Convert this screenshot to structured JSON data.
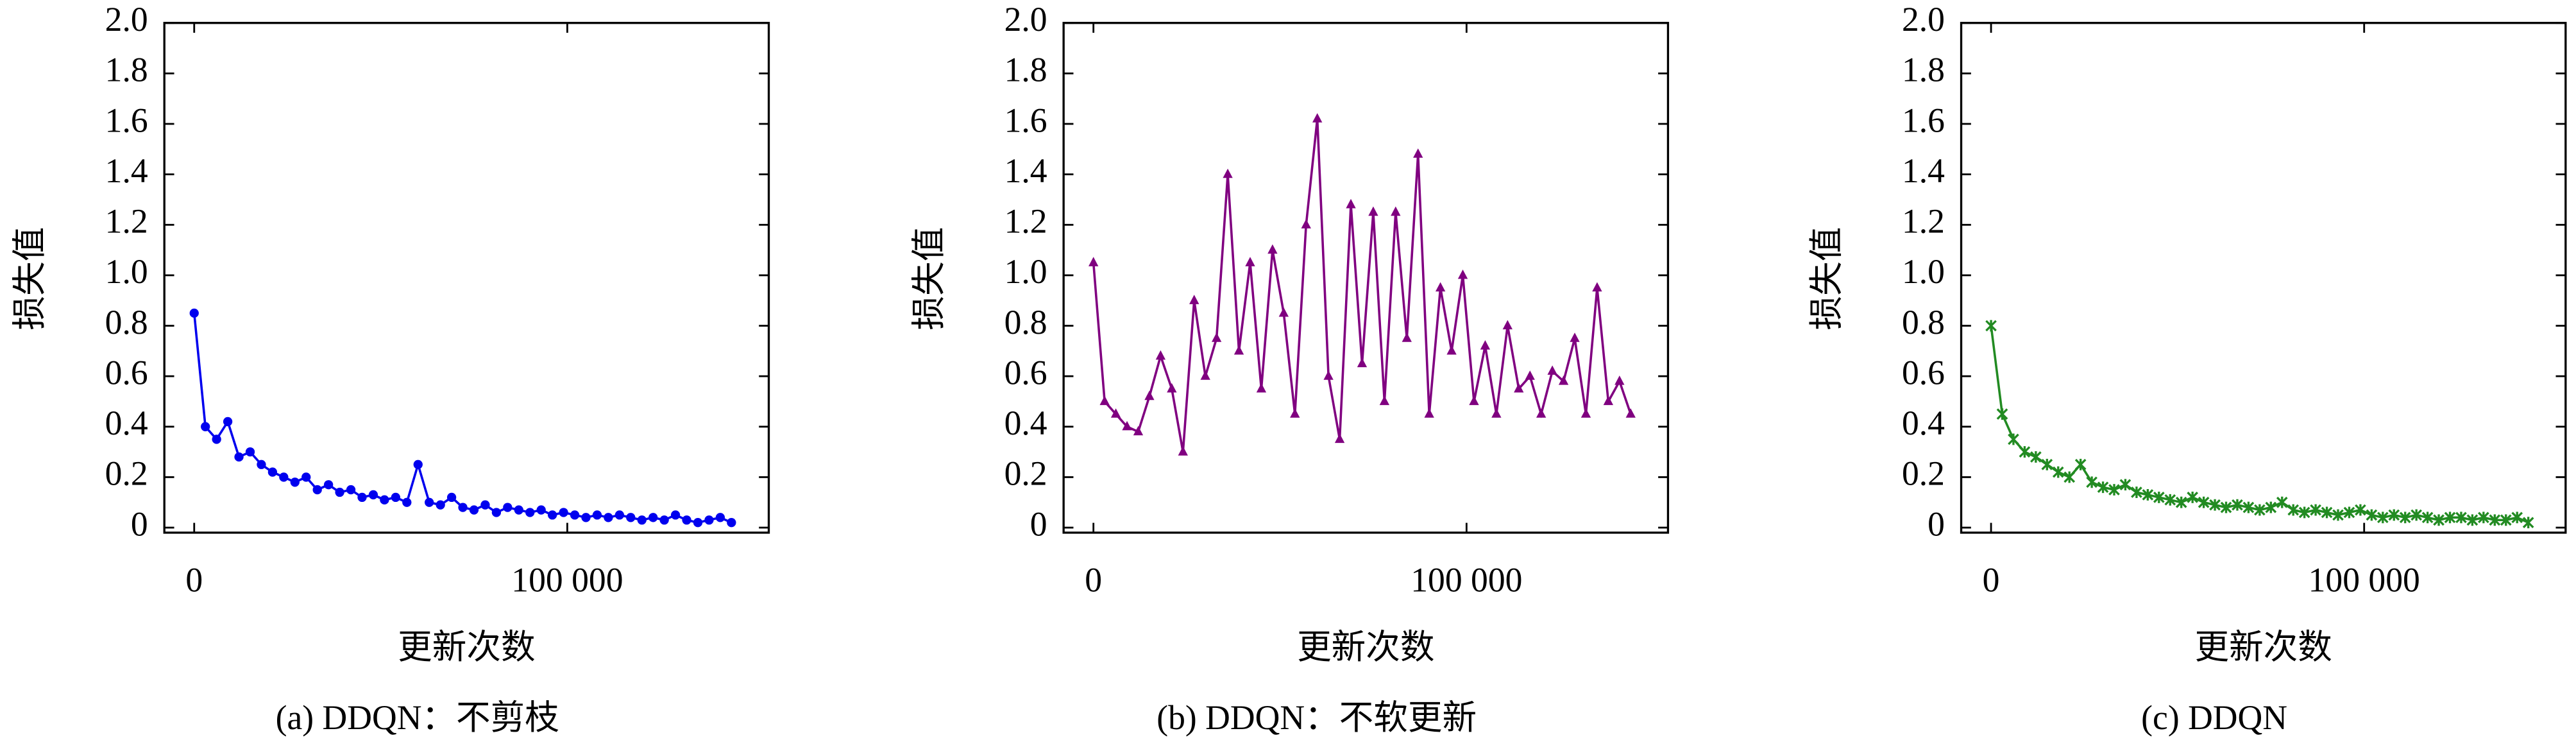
{
  "chart_data": [
    {
      "type": "line",
      "caption": "(a) DDQN：不剪枝",
      "xlabel": "更新次数",
      "ylabel": "损失值",
      "x": [
        0,
        3000,
        6000,
        9000,
        12000,
        15000,
        18000,
        21000,
        24000,
        27000,
        30000,
        33000,
        36000,
        39000,
        42000,
        45000,
        48000,
        51000,
        54000,
        57000,
        60000,
        63000,
        66000,
        69000,
        72000,
        75000,
        78000,
        81000,
        84000,
        87000,
        90000,
        93000,
        96000,
        99000,
        102000,
        105000,
        108000,
        111000,
        114000,
        117000,
        120000,
        123000,
        126000,
        129000,
        132000,
        135000,
        138000,
        141000,
        144000
      ],
      "series": [
        {
          "color": "#0000ee",
          "marker": "circle",
          "values": [
            0.85,
            0.4,
            0.35,
            0.42,
            0.28,
            0.3,
            0.25,
            0.22,
            0.2,
            0.18,
            0.2,
            0.15,
            0.17,
            0.14,
            0.15,
            0.12,
            0.13,
            0.11,
            0.12,
            0.1,
            0.25,
            0.1,
            0.09,
            0.12,
            0.08,
            0.07,
            0.09,
            0.06,
            0.08,
            0.07,
            0.06,
            0.07,
            0.05,
            0.06,
            0.05,
            0.04,
            0.05,
            0.04,
            0.05,
            0.04,
            0.03,
            0.04,
            0.03,
            0.05,
            0.03,
            0.02,
            0.03,
            0.04,
            0.02
          ]
        }
      ],
      "xlim": [
        -8000,
        154000
      ],
      "xticks": [
        0,
        {
          "value": 100000,
          "label": "100 000"
        }
      ],
      "ylim": [
        -0.02,
        2.0
      ],
      "yticks": [
        0,
        0.2,
        0.4,
        0.6,
        0.8,
        {
          "value": 1,
          "label": "1.0"
        },
        1.2,
        1.4,
        1.6,
        1.8,
        {
          "value": 2,
          "label": "2.0"
        }
      ]
    },
    {
      "type": "line",
      "caption": "(b) DDQN：不软更新",
      "xlabel": "更新次数",
      "ylabel": "损失值",
      "x": [
        0,
        3000,
        6000,
        9000,
        12000,
        15000,
        18000,
        21000,
        24000,
        27000,
        30000,
        33000,
        36000,
        39000,
        42000,
        45000,
        48000,
        51000,
        54000,
        57000,
        60000,
        63000,
        66000,
        69000,
        72000,
        75000,
        78000,
        81000,
        84000,
        87000,
        90000,
        93000,
        96000,
        99000,
        102000,
        105000,
        108000,
        111000,
        114000,
        117000,
        120000,
        123000,
        126000,
        129000,
        132000,
        135000,
        138000,
        141000,
        144000
      ],
      "series": [
        {
          "color": "#800080",
          "marker": "triangle",
          "values": [
            1.05,
            0.5,
            0.45,
            0.4,
            0.38,
            0.52,
            0.68,
            0.55,
            0.3,
            0.9,
            0.6,
            0.75,
            1.4,
            0.7,
            1.05,
            0.55,
            1.1,
            0.85,
            0.45,
            1.2,
            1.62,
            0.6,
            0.35,
            1.28,
            0.65,
            1.25,
            0.5,
            1.25,
            0.75,
            1.48,
            0.45,
            0.95,
            0.7,
            1.0,
            0.5,
            0.72,
            0.45,
            0.8,
            0.55,
            0.6,
            0.45,
            0.62,
            0.58,
            0.75,
            0.45,
            0.95,
            0.5,
            0.58,
            0.45
          ]
        }
      ],
      "xlim": [
        -8000,
        154000
      ],
      "xticks": [
        0,
        {
          "value": 100000,
          "label": "100 000"
        }
      ],
      "ylim": [
        -0.02,
        2.0
      ],
      "yticks": [
        0,
        0.2,
        0.4,
        0.6,
        0.8,
        {
          "value": 1,
          "label": "1.0"
        },
        1.2,
        1.4,
        1.6,
        1.8,
        {
          "value": 2,
          "label": "2.0"
        }
      ]
    },
    {
      "type": "line",
      "caption": "(c) DDQN",
      "xlabel": "更新次数",
      "ylabel": "损失值",
      "x": [
        0,
        3000,
        6000,
        9000,
        12000,
        15000,
        18000,
        21000,
        24000,
        27000,
        30000,
        33000,
        36000,
        39000,
        42000,
        45000,
        48000,
        51000,
        54000,
        57000,
        60000,
        63000,
        66000,
        69000,
        72000,
        75000,
        78000,
        81000,
        84000,
        87000,
        90000,
        93000,
        96000,
        99000,
        102000,
        105000,
        108000,
        111000,
        114000,
        117000,
        120000,
        123000,
        126000,
        129000,
        132000,
        135000,
        138000,
        141000,
        144000
      ],
      "series": [
        {
          "color": "#228b22",
          "marker": "star",
          "values": [
            0.8,
            0.45,
            0.35,
            0.3,
            0.28,
            0.25,
            0.22,
            0.2,
            0.25,
            0.18,
            0.16,
            0.15,
            0.17,
            0.14,
            0.13,
            0.12,
            0.11,
            0.1,
            0.12,
            0.1,
            0.09,
            0.08,
            0.09,
            0.08,
            0.07,
            0.08,
            0.1,
            0.07,
            0.06,
            0.07,
            0.06,
            0.05,
            0.06,
            0.07,
            0.05,
            0.04,
            0.05,
            0.04,
            0.05,
            0.04,
            0.03,
            0.04,
            0.04,
            0.03,
            0.04,
            0.03,
            0.03,
            0.04,
            0.02
          ]
        }
      ],
      "xlim": [
        -8000,
        154000
      ],
      "xticks": [
        0,
        {
          "value": 100000,
          "label": "100 000"
        }
      ],
      "ylim": [
        -0.02,
        2.0
      ],
      "yticks": [
        0,
        0.2,
        0.4,
        0.6,
        0.8,
        {
          "value": 1,
          "label": "1.0"
        },
        1.2,
        1.4,
        1.6,
        1.8,
        {
          "value": 2,
          "label": "2.0"
        }
      ]
    }
  ]
}
